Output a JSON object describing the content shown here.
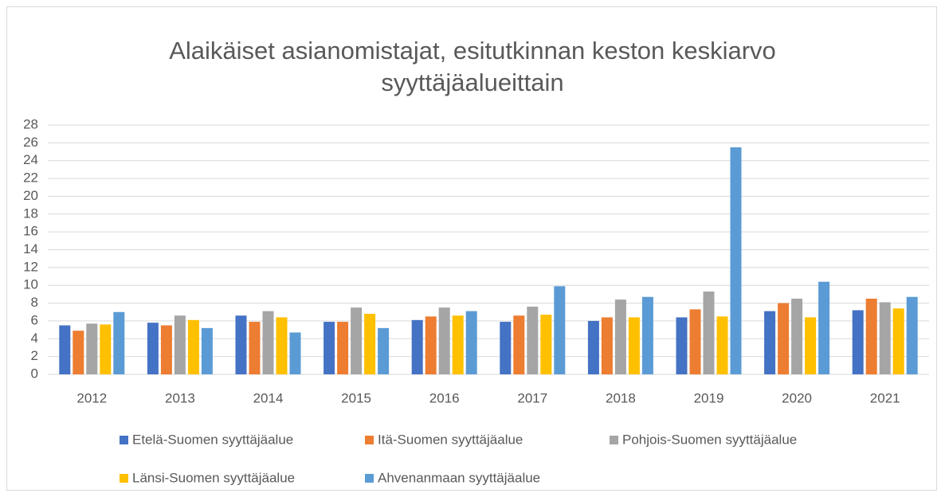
{
  "chart_data": {
    "type": "bar",
    "title": "Alaikäiset asianomistajat, esitutkinnan keston keskiarvo syyttäjäalueittain",
    "categories": [
      "2012",
      "2013",
      "2014",
      "2015",
      "2016",
      "2017",
      "2018",
      "2019",
      "2020",
      "2021"
    ],
    "series": [
      {
        "name": "Etelä-Suomen syyttäjäalue",
        "color": "#4472c4",
        "values": [
          5.5,
          5.8,
          6.6,
          5.9,
          6.1,
          5.9,
          6.0,
          6.4,
          7.1,
          7.2
        ]
      },
      {
        "name": "Itä-Suomen syyttäjäalue",
        "color": "#ed7d31",
        "values": [
          4.9,
          5.5,
          5.9,
          5.9,
          6.5,
          6.6,
          6.4,
          7.3,
          8.0,
          8.5
        ]
      },
      {
        "name": "Pohjois-Suomen syyttäjäalue",
        "color": "#a5a5a5",
        "values": [
          5.7,
          6.6,
          7.1,
          7.5,
          7.5,
          7.6,
          8.4,
          9.3,
          8.5,
          8.1
        ]
      },
      {
        "name": "Länsi-Suomen syyttäjäalue",
        "color": "#ffc000",
        "values": [
          5.6,
          6.1,
          6.4,
          6.8,
          6.6,
          6.7,
          6.4,
          6.5,
          6.4,
          7.4
        ]
      },
      {
        "name": "Ahvenanmaan syyttäjäalue",
        "color": "#5b9bd5",
        "values": [
          7.0,
          5.2,
          4.7,
          5.2,
          7.1,
          9.9,
          8.7,
          25.5,
          10.4,
          8.7
        ]
      }
    ],
    "ylim": [
      0,
      28
    ],
    "yticks": [
      0,
      2,
      4,
      6,
      8,
      10,
      12,
      14,
      16,
      18,
      20,
      22,
      24,
      26,
      28
    ],
    "grid": true,
    "legend": "bottom"
  }
}
